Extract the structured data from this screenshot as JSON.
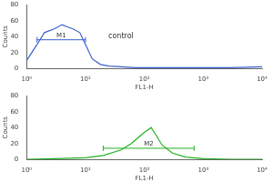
{
  "chart_data": [
    {
      "type": "line",
      "x_label": "FL1-H",
      "y_label": "Counts",
      "log": "x",
      "x": [
        1,
        1.5,
        2,
        3,
        4,
        5,
        6,
        8,
        10,
        13,
        18,
        25,
        40,
        70,
        150,
        400,
        1000,
        3000,
        10000
      ],
      "series": [
        {
          "name": "control",
          "color": "#3a5fcd",
          "values": [
            10,
            30,
            45,
            50,
            55,
            52,
            50,
            45,
            30,
            12,
            5,
            3,
            2,
            1,
            1,
            1,
            1,
            1,
            2
          ]
        }
      ],
      "xlim": [
        1,
        10000
      ],
      "xticks": [
        {
          "value": 1,
          "label": "10⁰"
        },
        {
          "value": 10,
          "label": "10¹"
        },
        {
          "value": 100,
          "label": "10²"
        },
        {
          "value": 1000,
          "label": "10³"
        },
        {
          "value": 10000,
          "label": "10⁴"
        }
      ],
      "ylim": [
        0,
        80
      ],
      "yticks": [
        0,
        20,
        40,
        60,
        80
      ],
      "grid": false,
      "markers": [
        {
          "label": "M1",
          "from": 1.5,
          "to": 10,
          "y": 36
        }
      ],
      "annotations": [
        {
          "text": "control",
          "x": 40,
          "y": 36
        }
      ]
    },
    {
      "type": "line",
      "x_label": "FL1-H",
      "y_label": "Counts",
      "log": "x",
      "x": [
        1,
        3,
        10,
        20,
        40,
        60,
        80,
        100,
        130,
        160,
        200,
        300,
        500,
        1000,
        3000,
        10000
      ],
      "series": [
        {
          "name": "M2",
          "color": "#22b022",
          "values": [
            0,
            1,
            2,
            5,
            12,
            20,
            28,
            34,
            40,
            30,
            18,
            8,
            3,
            1,
            0,
            0
          ]
        }
      ],
      "xlim": [
        1,
        10000
      ],
      "xticks": [
        {
          "value": 1,
          "label": "10⁰"
        },
        {
          "value": 10,
          "label": "10¹"
        },
        {
          "value": 100,
          "label": "10²"
        },
        {
          "value": 1000,
          "label": "10³"
        },
        {
          "value": 10000,
          "label": "10⁴"
        }
      ],
      "ylim": [
        0,
        80
      ],
      "yticks": [
        0,
        20,
        40,
        60,
        80
      ],
      "grid": false,
      "markers": [
        {
          "label": "M2",
          "from": 20,
          "to": 700,
          "y": 14
        }
      ],
      "annotations": []
    }
  ]
}
